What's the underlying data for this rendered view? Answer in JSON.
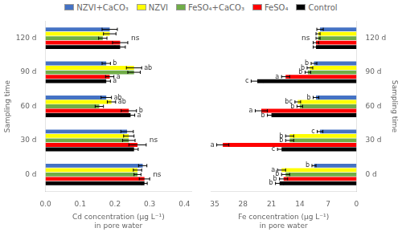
{
  "chart_data": [
    {
      "type": "bar",
      "orientation": "horizontal",
      "categories": [
        "0 d",
        "30 d",
        "60 d",
        "90 d",
        "120 d"
      ],
      "series": [
        {
          "name": "NZVI+CaCO₃",
          "color": "#4472C4",
          "values": [
            0.28,
            0.235,
            0.175,
            0.175,
            0.185
          ],
          "errors": [
            0.012,
            0.018,
            0.015,
            0.012,
            0.022
          ]
        },
        {
          "name": "NZVI",
          "color": "#FFFF00",
          "values": [
            0.265,
            0.24,
            0.19,
            0.255,
            0.185
          ],
          "errors": [
            0.012,
            0.015,
            0.012,
            0.022,
            0.018
          ]
        },
        {
          "name": "FeSO₄+CaCO₃",
          "color": "#70AD47",
          "values": [
            0.265,
            0.24,
            0.155,
            0.255,
            0.165
          ],
          "errors": [
            0.01,
            0.018,
            0.012,
            0.018,
            0.012
          ]
        },
        {
          "name": "FeSO₄",
          "color": "#FF0000",
          "values": [
            0.285,
            0.265,
            0.24,
            0.185,
            0.215
          ],
          "errors": [
            0.015,
            0.025,
            0.022,
            0.012,
            0.022
          ]
        },
        {
          "name": "Control",
          "color": "#000000",
          "values": [
            0.285,
            0.255,
            0.245,
            0.175,
            0.215
          ],
          "errors": [
            0.008,
            0.012,
            0.012,
            0.012,
            0.015
          ]
        }
      ],
      "xlabel": "Cd concentration (μg L⁻¹)\nin pore water",
      "ylabel": "Sampling time",
      "xlim": [
        0,
        0.42
      ],
      "xticks": [
        {
          "value": 0,
          "label": "0.0"
        },
        0.1,
        0.2,
        0.3,
        0.4
      ],
      "grid": false,
      "legend": "top",
      "annotations": [
        {
          "category": "0 d",
          "text": "ns"
        },
        {
          "category": "30 d",
          "text": "ns"
        },
        {
          "category": "60 d",
          "series": "NZVI+CaCO₃",
          "text": "ab"
        },
        {
          "category": "60 d",
          "series": "NZVI",
          "text": "ab"
        },
        {
          "category": "60 d",
          "series": "FeSO₄",
          "text": "b"
        },
        {
          "category": "60 d",
          "series": "Control",
          "text": "a"
        },
        {
          "category": "90 d",
          "series": "NZVI+CaCO₃",
          "text": "b"
        },
        {
          "category": "90 d",
          "series": "NZVI",
          "text": "ab"
        },
        {
          "category": "90 d",
          "series": "FeSO₄",
          "text": "a"
        },
        {
          "category": "90 d",
          "series": "Control",
          "text": "a"
        },
        {
          "category": "120 d",
          "text": "ns"
        }
      ]
    },
    {
      "type": "bar",
      "orientation": "horizontal",
      "categories": [
        "0 d",
        "30 d",
        "60 d",
        "90 d",
        "120 d"
      ],
      "series": [
        {
          "name": "NZVI+CaCO₃",
          "color": "#4472C4",
          "values": [
            10.5,
            9.0,
            10.0,
            10.5,
            9.0
          ],
          "errors": [
            0.5,
            0.7,
            0.7,
            0.7,
            0.8
          ]
        },
        {
          "name": "NZVI",
          "color": "#FFFF00",
          "values": [
            18.5,
            16.5,
            14.5,
            11.5,
            9.5
          ],
          "errors": [
            1.0,
            1.0,
            0.7,
            0.7,
            0.5
          ]
        },
        {
          "name": "FeSO₄+CaCO₃",
          "color": "#70AD47",
          "values": [
            17.5,
            16.5,
            14.0,
            12.0,
            9.5
          ],
          "errors": [
            1.0,
            1.0,
            0.7,
            0.7,
            0.5
          ]
        },
        {
          "name": "FeSO₄",
          "color": "#FF0000",
          "values": [
            18.0,
            33.0,
            23.5,
            17.5,
            10.0
          ],
          "errors": [
            1.0,
            1.5,
            1.5,
            1.0,
            0.7
          ]
        },
        {
          "name": "Control",
          "color": "#000000",
          "values": [
            19.0,
            18.5,
            21.0,
            24.5,
            10.0
          ],
          "errors": [
            1.0,
            1.0,
            1.0,
            1.5,
            0.7
          ]
        }
      ],
      "xlabel": "Fe concentration (μg L⁻¹)\nin pore water",
      "ylabel": "Sampling time",
      "xlim": [
        36,
        0
      ],
      "xticks": [
        35,
        28,
        21,
        14,
        7,
        0
      ],
      "grid": false,
      "annotations": [
        {
          "category": "0 d",
          "series": "NZVI",
          "text": "a"
        },
        {
          "category": "0 d",
          "series": "NZVI+CaCO₃",
          "text": "b"
        },
        {
          "category": "0 d",
          "series": "FeSO₄+CaCO₃",
          "text": "b"
        },
        {
          "category": "0 d",
          "series": "FeSO₄",
          "text": "b"
        },
        {
          "category": "0 d",
          "series": "Control",
          "text": "b"
        },
        {
          "category": "30 d",
          "series": "FeSO₄",
          "text": "a"
        },
        {
          "category": "30 d",
          "series": "NZVI",
          "text": "b"
        },
        {
          "category": "30 d",
          "series": "FeSO₄+CaCO₃",
          "text": "b"
        },
        {
          "category": "30 d",
          "series": "NZVI+CaCO₃",
          "text": "c"
        },
        {
          "category": "30 d",
          "series": "Control",
          "text": "c"
        },
        {
          "category": "60 d",
          "series": "FeSO₄",
          "text": "a"
        },
        {
          "category": "60 d",
          "series": "NZVI+CaCO₃",
          "text": "b"
        },
        {
          "category": "60 d",
          "series": "NZVI",
          "text": "bc"
        },
        {
          "category": "60 d",
          "series": "FeSO₄+CaCO₃",
          "text": "b"
        },
        {
          "category": "60 d",
          "series": "Control",
          "text": "b"
        },
        {
          "category": "90 d",
          "series": "FeSO₄",
          "text": "a"
        },
        {
          "category": "90 d",
          "series": "NZVI+CaCO₃",
          "text": "b"
        },
        {
          "category": "90 d",
          "series": "NZVI",
          "text": "b"
        },
        {
          "category": "90 d",
          "series": "FeSO₄+CaCO₃",
          "text": "b"
        },
        {
          "category": "90 d",
          "series": "Control",
          "text": "c"
        },
        {
          "category": "120 d",
          "text": "ns"
        }
      ]
    }
  ]
}
